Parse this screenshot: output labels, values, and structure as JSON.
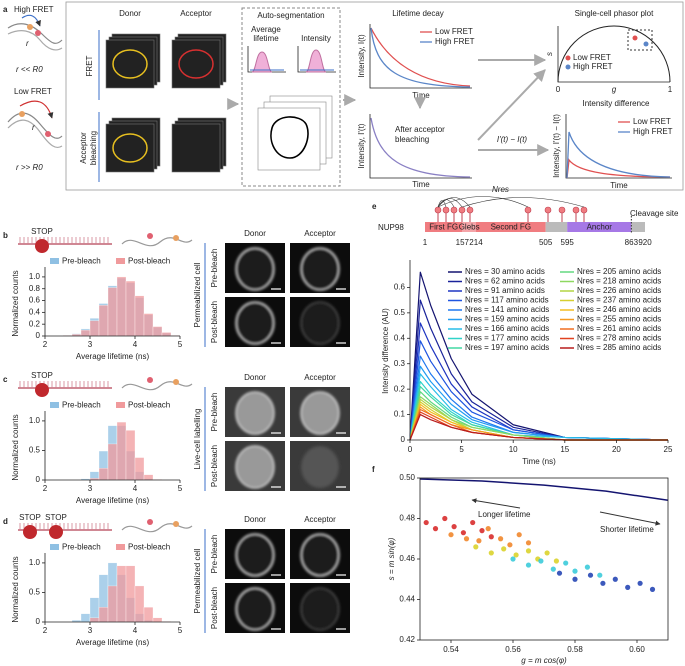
{
  "figure_a": {
    "label": "a",
    "high_fret": "High FRET",
    "r": "r",
    "r_high": "r << R0",
    "low_fret": "Low FRET",
    "r_low": "r >> R0",
    "donor": "Donor",
    "acceptor": "Acceptor",
    "fret": "FRET",
    "bleach_row": [
      "Acceptor",
      "bleaching"
    ],
    "autoseg": "Auto-segmentation",
    "avg_lifetime": [
      "Average",
      "lifetime"
    ],
    "intensity": "Intensity",
    "decay_title": "Lifetime decay",
    "decay_ylabel": "Intensity, I(t)",
    "time": "Time",
    "low": "Low FRET",
    "high": "High FRET",
    "after": [
      "After acceptor",
      "bleaching"
    ],
    "after_ylabel": "Intensity, I'(t)",
    "diff_arrow": "I'(t) − I(t)",
    "phasor_title": "Single-cell phasor plot",
    "s": "s",
    "g": "g",
    "zero": "0",
    "one": "1",
    "diff_title": "Intensity difference",
    "diff_ylabel": "Intensity, I'(t) − I(t)"
  },
  "chart_data": [
    {
      "type": "histogram",
      "label": "b",
      "cartoon": [
        "STOP"
      ],
      "bins": [
        2,
        2.2,
        2.4,
        2.6,
        2.8,
        3,
        3.2,
        3.4,
        3.6,
        3.8,
        4,
        4.2,
        4.4,
        4.6,
        4.8,
        5
      ],
      "series": [
        {
          "name": "Pre-bleach",
          "color": "#8fc0e3",
          "values": [
            0,
            0,
            0.01,
            0.04,
            0.12,
            0.3,
            0.55,
            0.85,
            0.98,
            0.9,
            0.65,
            0.36,
            0.15,
            0.05,
            0.01
          ]
        },
        {
          "name": "Post-bleach",
          "color": "#f09a9c",
          "values": [
            0,
            0,
            0.01,
            0.03,
            0.1,
            0.26,
            0.52,
            0.82,
            1.0,
            0.93,
            0.68,
            0.38,
            0.16,
            0.06,
            0.01
          ]
        }
      ],
      "xlim": [
        2,
        5
      ],
      "xticks": [
        2,
        3,
        4,
        5
      ],
      "ylim": [
        0,
        1.1
      ],
      "yticks": [
        0,
        0.2,
        0.4,
        0.6,
        0.8,
        {
          "value": 1,
          "label": "1.0"
        }
      ],
      "xlabel": "Average lifetime (ns)",
      "ylabel": "Normalized counts",
      "images": {
        "columns": [
          "Donor",
          "Acceptor"
        ],
        "rows": [
          "Pre-bleach",
          "Post-bleach"
        ],
        "group": "Permeabilized cell"
      }
    },
    {
      "type": "histogram",
      "label": "c",
      "cartoon": [
        "STOP"
      ],
      "bins": [
        2,
        2.2,
        2.4,
        2.6,
        2.8,
        3,
        3.2,
        3.4,
        3.6,
        3.8,
        4,
        4.2,
        4.4,
        4.6,
        4.8,
        5
      ],
      "series": [
        {
          "name": "Pre-bleach",
          "color": "#8fc0e3",
          "values": [
            0,
            0,
            0,
            0,
            0.02,
            0.14,
            0.49,
            0.92,
            0.92,
            0.49,
            0.14,
            0.02,
            0,
            0,
            0
          ]
        },
        {
          "name": "Post-bleach",
          "color": "#f09a9c",
          "values": [
            0,
            0,
            0,
            0,
            0,
            0.03,
            0.2,
            0.61,
            0.98,
            0.84,
            0.38,
            0.09,
            0.01,
            0,
            0
          ]
        }
      ],
      "xlim": [
        2,
        5
      ],
      "xticks": [
        2,
        3,
        4,
        5
      ],
      "ylim": [
        0,
        1.1
      ],
      "yticks": [
        0,
        0.5,
        {
          "value": 1,
          "label": "1.0"
        }
      ],
      "xlabel": "Average lifetime (ns)",
      "ylabel": "Normalized counts",
      "images": {
        "columns": [
          "Donor",
          "Acceptor"
        ],
        "rows": [
          "Pre-bleach",
          "Post-bleach"
        ],
        "group": "Live-cell labelling"
      }
    },
    {
      "type": "histogram",
      "label": "d",
      "cartoon": [
        "STOP",
        "STOP"
      ],
      "bins": [
        2,
        2.2,
        2.4,
        2.6,
        2.8,
        3,
        3.2,
        3.4,
        3.6,
        3.8,
        4,
        4.2,
        4.4,
        4.6,
        4.8,
        5
      ],
      "series": [
        {
          "name": "Pre-bleach",
          "color": "#8fc0e3",
          "values": [
            0,
            0,
            0,
            0.03,
            0.14,
            0.41,
            0.8,
            1,
            0.8,
            0.41,
            0.14,
            0.03,
            0,
            0,
            0
          ]
        },
        {
          "name": "Post-bleach",
          "color": "#f09a9c",
          "values": [
            0,
            0,
            0,
            0,
            0,
            0.07,
            0.25,
            0.61,
            0.95,
            0.95,
            0.61,
            0.25,
            0.07,
            0.01,
            0
          ]
        }
      ],
      "xlim": [
        2,
        5
      ],
      "xticks": [
        2,
        3,
        4,
        5
      ],
      "ylim": [
        0,
        1.1
      ],
      "yticks": [
        0,
        0.5,
        {
          "value": 1,
          "label": "1.0"
        }
      ],
      "xlabel": "Average lifetime (ns)",
      "ylabel": "Normalized counts",
      "images": {
        "columns": [
          "Donor",
          "Acceptor"
        ],
        "rows": [
          "Pre-bleach",
          "Post-bleach"
        ],
        "group": "Permeabilized cell"
      }
    },
    {
      "type": "line",
      "label": "e",
      "protein": "NUP98",
      "residue_label": "Nres",
      "cleavage": "Cleavage site",
      "domains": [
        "First FG",
        "Glebs",
        "Second FG",
        "Anchor"
      ],
      "positions": [
        1,
        157,
        214,
        505,
        595,
        863,
        920
      ],
      "x": [
        0,
        1,
        2,
        4,
        6,
        10,
        15,
        25
      ],
      "series": [
        {
          "name": "Nres = 30 amino acids",
          "color": "#141470",
          "values": [
            0,
            0.66,
            0.53,
            0.32,
            0.18,
            0.06,
            0.01,
            0
          ]
        },
        {
          "name": "Nres = 62 amino acids",
          "color": "#1a239a",
          "values": [
            0,
            0.55,
            0.44,
            0.26,
            0.15,
            0.05,
            0.01,
            0
          ]
        },
        {
          "name": "Nres = 91 amino acids",
          "color": "#1e35c2",
          "values": [
            0,
            0.46,
            0.37,
            0.22,
            0.13,
            0.04,
            0.01,
            0
          ]
        },
        {
          "name": "Nres = 117 amino acids",
          "color": "#1f55e0",
          "values": [
            0,
            0.39,
            0.31,
            0.19,
            0.11,
            0.04,
            0.01,
            0
          ]
        },
        {
          "name": "Nres = 141 amino acids",
          "color": "#1f78f0",
          "values": [
            0,
            0.33,
            0.26,
            0.16,
            0.09,
            0.03,
            0.01,
            0
          ]
        },
        {
          "name": "Nres = 159 amino acids",
          "color": "#229cf2",
          "values": [
            0,
            0.29,
            0.23,
            0.14,
            0.08,
            0.03,
            0.01,
            0
          ]
        },
        {
          "name": "Nres = 166 amino acids",
          "color": "#27bde8",
          "values": [
            0,
            0.26,
            0.21,
            0.12,
            0.07,
            0.02,
            0.01,
            0
          ]
        },
        {
          "name": "Nres = 177 amino acids",
          "color": "#30d3c8",
          "values": [
            0,
            0.23,
            0.18,
            0.11,
            0.06,
            0.02,
            0,
            0
          ]
        },
        {
          "name": "Nres = 197 amino acids",
          "color": "#42d8a2",
          "values": [
            0,
            0.21,
            0.17,
            0.1,
            0.06,
            0.02,
            0,
            0
          ]
        },
        {
          "name": "Nres = 205 amino acids",
          "color": "#62d880",
          "values": [
            0,
            0.19,
            0.15,
            0.09,
            0.05,
            0.02,
            0,
            0
          ]
        },
        {
          "name": "Nres = 218 amino acids",
          "color": "#8ed860",
          "values": [
            0,
            0.17,
            0.14,
            0.08,
            0.05,
            0.02,
            0,
            0
          ]
        },
        {
          "name": "Nres = 226 amino acids",
          "color": "#b3d442",
          "values": [
            0,
            0.16,
            0.13,
            0.08,
            0.04,
            0.01,
            0,
            0
          ]
        },
        {
          "name": "Nres = 237 amino acids",
          "color": "#d6cf30",
          "values": [
            0,
            0.15,
            0.12,
            0.07,
            0.04,
            0.01,
            0,
            0
          ]
        },
        {
          "name": "Nres = 246 amino acids",
          "color": "#f2bd22",
          "values": [
            0,
            0.14,
            0.11,
            0.07,
            0.04,
            0.01,
            0,
            0
          ]
        },
        {
          "name": "Nres = 255 amino acids",
          "color": "#f49a20",
          "values": [
            0,
            0.13,
            0.1,
            0.06,
            0.04,
            0.01,
            0,
            0
          ]
        },
        {
          "name": "Nres = 261 amino acids",
          "color": "#f06e20",
          "values": [
            0,
            0.12,
            0.1,
            0.06,
            0.03,
            0.01,
            0,
            0
          ]
        },
        {
          "name": "Nres = 278 amino acids",
          "color": "#e04220",
          "values": [
            0,
            0.11,
            0.09,
            0.05,
            0.03,
            0.01,
            0,
            0
          ]
        },
        {
          "name": "Nres = 285 amino acids",
          "color": "#b81c1c",
          "values": [
            0,
            0.1,
            0.08,
            0.05,
            0.03,
            0.01,
            0,
            0
          ]
        }
      ],
      "xlim": [
        0,
        25
      ],
      "xticks": [
        0,
        5,
        10,
        15,
        20,
        25
      ],
      "ylim": [
        0,
        0.7
      ],
      "yticks": [
        0,
        0.1,
        0.2,
        0.3,
        0.4,
        0.5,
        0.6
      ],
      "xlabel": "Time (ns)",
      "ylabel": "Intensity difference (AU)"
    },
    {
      "type": "scatter",
      "label": "f",
      "curve": {
        "color": "#141470",
        "x": [
          0.53,
          0.55,
          0.57,
          0.59,
          0.61
        ],
        "y": [
          0.4995,
          0.4985,
          0.4965,
          0.4935,
          0.489
        ]
      },
      "series": [
        {
          "color": "#d62020",
          "x": [
            0.532,
            0.535,
            0.538,
            0.541,
            0.544,
            0.547,
            0.55,
            0.553
          ],
          "y": [
            0.478,
            0.475,
            0.48,
            0.476,
            0.473,
            0.478,
            0.474,
            0.471
          ]
        },
        {
          "color": "#f08020",
          "x": [
            0.54,
            0.545,
            0.549,
            0.552,
            0.556,
            0.559,
            0.562,
            0.565
          ],
          "y": [
            0.472,
            0.47,
            0.469,
            0.475,
            0.47,
            0.467,
            0.472,
            0.468
          ]
        },
        {
          "color": "#d8d020",
          "x": [
            0.548,
            0.553,
            0.557,
            0.561,
            0.565,
            0.568,
            0.571,
            0.574
          ],
          "y": [
            0.466,
            0.463,
            0.465,
            0.462,
            0.464,
            0.46,
            0.463,
            0.459
          ]
        },
        {
          "color": "#30c8d8",
          "x": [
            0.56,
            0.565,
            0.569,
            0.573,
            0.577,
            0.58,
            0.584,
            0.588
          ],
          "y": [
            0.46,
            0.457,
            0.459,
            0.455,
            0.458,
            0.454,
            0.456,
            0.452
          ]
        },
        {
          "color": "#1a3cb0",
          "x": [
            0.575,
            0.58,
            0.585,
            0.589,
            0.593,
            0.597,
            0.601,
            0.605
          ],
          "y": [
            0.453,
            0.45,
            0.452,
            0.448,
            0.45,
            0.446,
            0.448,
            0.445
          ]
        }
      ],
      "xlim": [
        0.53,
        0.61
      ],
      "xticks": [
        0.54,
        0.56,
        0.58,
        {
          "value": 0.6,
          "label": "0.60"
        }
      ],
      "ylim": [
        0.42,
        0.5
      ],
      "yticks": [
        0.42,
        0.44,
        0.46,
        0.48,
        {
          "value": 0.5,
          "label": "0.50"
        }
      ],
      "xlabel": "g = m cos(φ)",
      "ylabel": "s = m sin(φ)",
      "annotations": [
        "Longer lifetime",
        "Shorter lifetime"
      ]
    }
  ]
}
